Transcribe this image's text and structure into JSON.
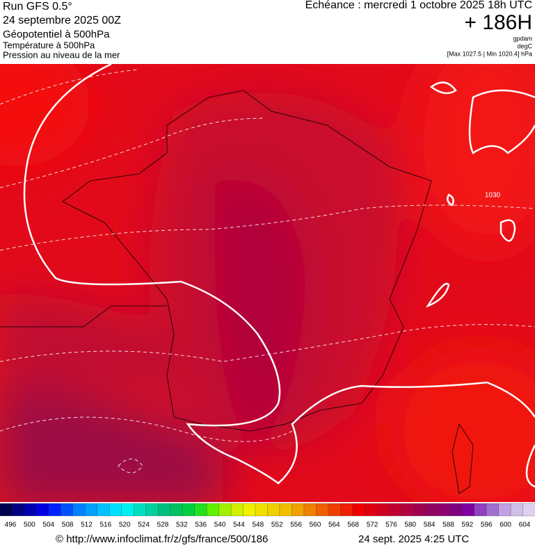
{
  "header": {
    "run": "Run GFS 0.5°",
    "date": "24 septembre 2025 00Z",
    "field1": "Géopotentiel à 500hPa",
    "field2": "Température à 500hPa",
    "field3": "Pression au niveau de la mer",
    "echeance": "Echéance : mercredi 1 octobre 2025 18h UTC",
    "offset": "+ 186H",
    "unit1": "gpdam",
    "unit2": "degC",
    "range": "[Max 1027.5 | Min 1020.4] hPa"
  },
  "map": {
    "isobar_label": "1030"
  },
  "colorbar": {
    "labels": [
      496,
      500,
      504,
      508,
      512,
      516,
      520,
      524,
      528,
      532,
      536,
      540,
      544,
      548,
      552,
      556,
      560,
      564,
      568,
      572,
      576,
      580,
      584,
      588,
      592,
      596,
      600,
      604
    ],
    "colors": [
      "#000050",
      "#000080",
      "#0000b0",
      "#0000e0",
      "#0020ff",
      "#0050ff",
      "#0080ff",
      "#00a0ff",
      "#00c0ff",
      "#00e0ff",
      "#00f0f0",
      "#00e0c0",
      "#00d0a0",
      "#00c080",
      "#00c060",
      "#00d040",
      "#20e020",
      "#60f000",
      "#a0f000",
      "#d0f000",
      "#f0f000",
      "#f0e000",
      "#f0d000",
      "#f0c000",
      "#f0a000",
      "#f08000",
      "#f06000",
      "#f04000",
      "#f02000",
      "#f00000",
      "#e00010",
      "#d00020",
      "#c00030",
      "#b00040",
      "#a00050",
      "#900060",
      "#900070",
      "#800080",
      "#8000a0",
      "#9040c0",
      "#a070d0",
      "#c0a0e0",
      "#d0c0e8",
      "#e0d0f0"
    ]
  },
  "footer": {
    "url": "© http://www.infoclimat.fr/z/gfs/france/500/186",
    "time": "24 sept. 2025  4:25 UTC"
  }
}
